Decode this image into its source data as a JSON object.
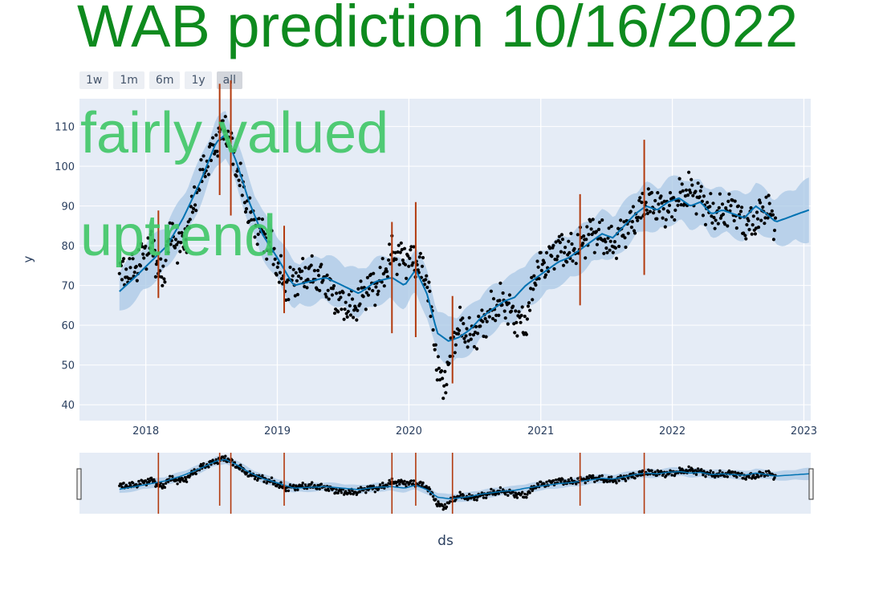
{
  "title": "WAB prediction 10/16/2022",
  "range_buttons": [
    "1w",
    "1m",
    "6m",
    "1y",
    "all"
  ],
  "active_range": "all",
  "overlays": [
    "fairly valued",
    "uptrend"
  ],
  "colors": {
    "title": "#0e8a1e",
    "overlay": "#3fc766",
    "plot_bg": "#e5ecf6",
    "forecast_line": "#0072b2",
    "band": "#a9c8e6",
    "points": "#000000",
    "changepoints": "#b23a0e"
  },
  "chart_data": {
    "type": "line",
    "xlabel": "ds",
    "ylabel": "y",
    "x_ticks": [
      "2018",
      "2019",
      "2020",
      "2021",
      "2022",
      "2023"
    ],
    "y_ticks": [
      40,
      50,
      60,
      70,
      80,
      90,
      100,
      110
    ],
    "ylim": [
      36,
      117
    ],
    "xlim": [
      "2017-07-01",
      "2023-01-20"
    ],
    "grid": true,
    "series": [
      {
        "kind": "forecast",
        "x": [
          "2017-10-20",
          "2017-12-01",
          "2018-01-15",
          "2018-03-01",
          "2018-04-15",
          "2018-06-01",
          "2018-07-15",
          "2018-08-10",
          "2018-09-10",
          "2018-10-15",
          "2018-11-20",
          "2019-01-01",
          "2019-02-15",
          "2019-04-01",
          "2019-05-15",
          "2019-07-01",
          "2019-08-15",
          "2019-10-01",
          "2019-11-15",
          "2019-12-20",
          "2020-01-20",
          "2020-02-20",
          "2020-03-20",
          "2020-04-20",
          "2020-05-20",
          "2020-06-20",
          "2020-07-20",
          "2020-08-20",
          "2020-09-20",
          "2020-10-20",
          "2020-11-20",
          "2020-12-20",
          "2021-01-20",
          "2021-02-20",
          "2021-03-20",
          "2021-04-20",
          "2021-05-20",
          "2021-06-20",
          "2021-07-20",
          "2021-08-20",
          "2021-09-20",
          "2021-10-20",
          "2021-11-20",
          "2021-12-20",
          "2022-01-20",
          "2022-02-20",
          "2022-03-20",
          "2022-04-20",
          "2022-05-20",
          "2022-06-20",
          "2022-07-20",
          "2022-08-20",
          "2022-09-20",
          "2022-10-15",
          "2022-11-15",
          "2022-12-15",
          "2023-01-15"
        ],
        "values": [
          68.5,
          72,
          76,
          80,
          87,
          96,
          106,
          108,
          101,
          91,
          83,
          77,
          70,
          71,
          72,
          70,
          68,
          71,
          72,
          70,
          74,
          68,
          58,
          56,
          57,
          59,
          62,
          64,
          66,
          67,
          70,
          72,
          74,
          76,
          77,
          79,
          81,
          83,
          82,
          85,
          88,
          90,
          89,
          91,
          92,
          90,
          91,
          88,
          89,
          88,
          87,
          90,
          88,
          86,
          87,
          88,
          89
        ]
      },
      {
        "kind": "actual",
        "anchor_x": [
          "2017-10-20",
          "2017-12-01",
          "2018-01-15",
          "2018-02-20",
          "2018-03-01",
          "2018-04-15",
          "2018-06-01",
          "2018-07-15",
          "2018-08-10",
          "2018-09-10",
          "2018-10-15",
          "2018-11-20",
          "2018-12-20",
          "2019-01-20",
          "2019-03-01",
          "2019-04-01",
          "2019-05-15",
          "2019-06-15",
          "2019-08-01",
          "2019-09-10",
          "2019-10-10",
          "2019-11-15",
          "2019-12-20",
          "2020-01-20",
          "2020-02-20",
          "2020-03-20",
          "2020-04-05",
          "2020-05-01",
          "2020-05-20",
          "2020-06-20",
          "2020-07-20",
          "2020-08-20",
          "2020-09-20",
          "2020-10-20",
          "2020-11-20",
          "2020-12-20",
          "2021-01-20",
          "2021-02-20",
          "2021-03-20",
          "2021-04-20",
          "2021-05-20",
          "2021-06-20",
          "2021-07-20",
          "2021-08-20",
          "2021-09-20",
          "2021-10-20",
          "2021-11-20",
          "2021-12-20",
          "2022-01-20",
          "2022-02-20",
          "2022-03-20",
          "2022-04-20",
          "2022-05-20",
          "2022-06-20",
          "2022-07-20",
          "2022-08-20",
          "2022-09-20",
          "2022-10-14"
        ],
        "anchor_y": [
          73,
          74,
          81,
          70,
          82,
          80,
          97,
          106,
          110,
          100,
          88,
          83,
          78,
          70,
          72,
          73,
          71,
          66,
          64,
          70,
          70,
          78,
          77,
          76,
          72,
          50,
          44,
          55,
          60,
          57,
          60,
          64,
          66,
          62,
          60,
          74,
          76,
          80,
          78,
          80,
          84,
          82,
          80,
          84,
          87,
          91,
          90,
          89,
          92,
          94,
          92,
          88,
          88,
          90,
          85,
          86,
          90,
          85
        ]
      }
    ],
    "changepoints": [
      "2018-02-05",
      "2018-07-25",
      "2018-08-25",
      "2019-01-20",
      "2019-11-15",
      "2020-01-20",
      "2020-05-01",
      "2021-04-20",
      "2021-10-15"
    ]
  }
}
